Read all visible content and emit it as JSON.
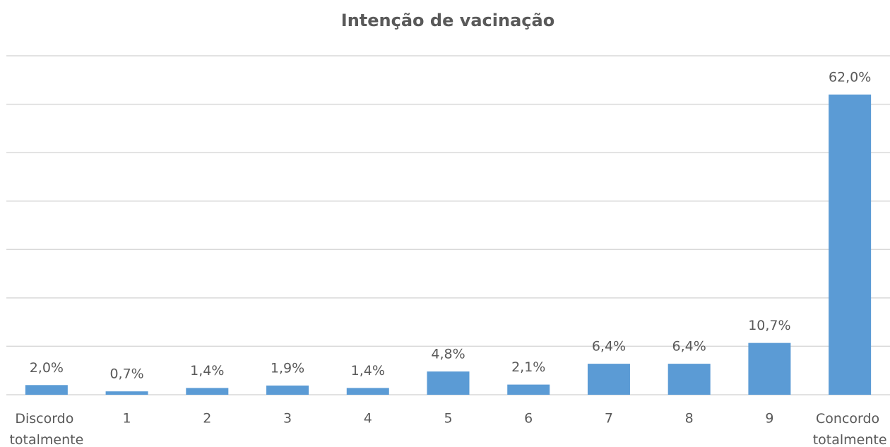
{
  "chart_data": {
    "type": "bar",
    "title": "Intenção de vacinação",
    "categories": [
      "Discordo totalmente",
      "1",
      "2",
      "3",
      "4",
      "5",
      "6",
      "7",
      "8",
      "9",
      "Concordo totalmente"
    ],
    "values": [
      2.0,
      0.7,
      1.4,
      1.9,
      1.4,
      4.8,
      2.1,
      6.4,
      6.4,
      10.7,
      62.0
    ],
    "value_labels": [
      "2,0%",
      "0,7%",
      "1,4%",
      "1,9%",
      "1,4%",
      "4,8%",
      "2,1%",
      "6,4%",
      "6,4%",
      "10,7%",
      "62,0%"
    ],
    "color": "#5b9bd5",
    "ylim": [
      0,
      70
    ],
    "yticks": [
      0,
      10,
      20,
      30,
      40,
      50,
      60,
      70
    ],
    "grid": true
  }
}
